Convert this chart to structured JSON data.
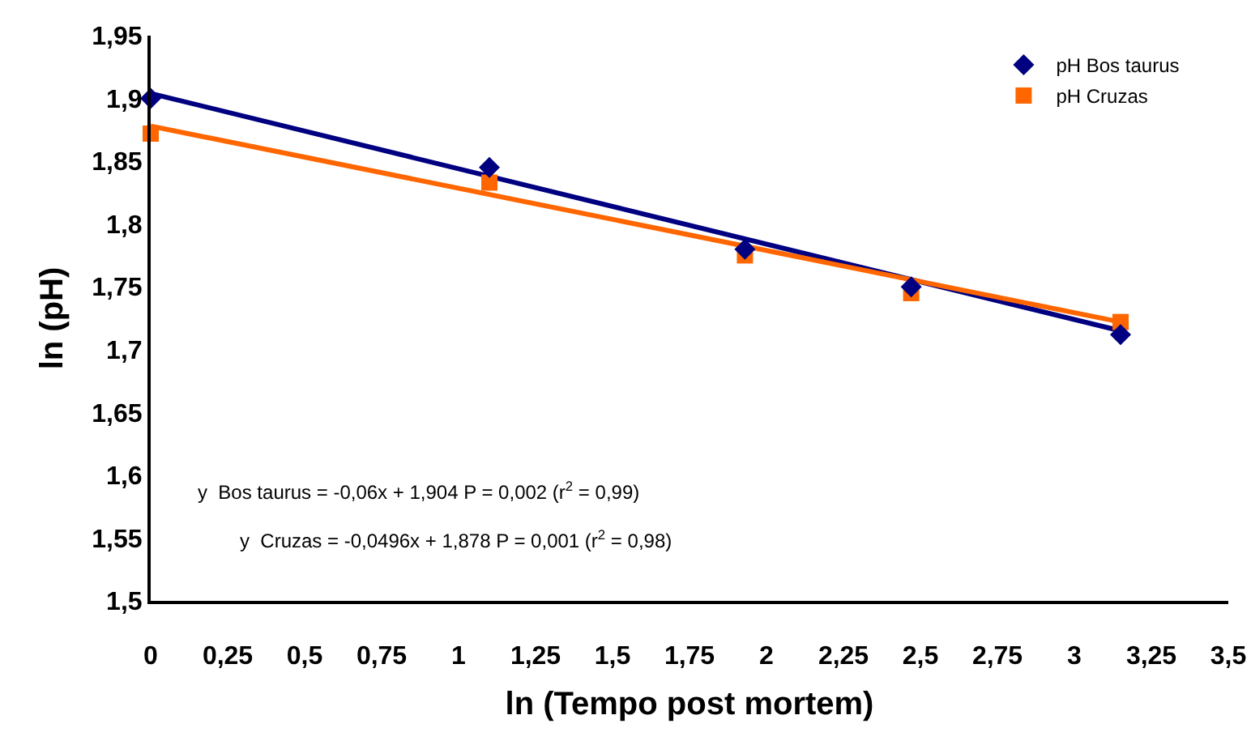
{
  "chart_data": {
    "type": "scatter",
    "xlabel": "ln (Tempo post mortem)",
    "ylabel": "ln (pH)",
    "series": [
      {
        "name": "pH Bos taurus",
        "marker": "diamond",
        "color": "#000080",
        "x": [
          0,
          1.1,
          1.93,
          2.47,
          3.15
        ],
        "values": [
          1.9,
          1.845,
          1.78,
          1.75,
          1.712
        ]
      },
      {
        "name": "pH Cruzas",
        "marker": "square",
        "color": "#ff6600",
        "x": [
          0,
          1.1,
          1.93,
          2.47,
          3.15
        ],
        "values": [
          1.872,
          1.833,
          1.775,
          1.745,
          1.722
        ]
      },
      {
        "type": "line",
        "marker": "none",
        "color": "#000080",
        "x": [
          0,
          3.15
        ],
        "values": [
          1.904,
          1.715
        ]
      },
      {
        "type": "line",
        "marker": "none",
        "color": "#ff6600",
        "x": [
          0,
          3.15
        ],
        "values": [
          1.878,
          1.722
        ]
      }
    ],
    "xlim": [
      0,
      3.5
    ],
    "xticks": [
      0,
      {
        "value": 0.25,
        "label": "0,25"
      },
      {
        "value": 0.5,
        "label": "0,5"
      },
      {
        "value": 0.75,
        "label": "0,75"
      },
      1,
      {
        "value": 1.25,
        "label": "1,25"
      },
      {
        "value": 1.5,
        "label": "1,5"
      },
      {
        "value": 1.75,
        "label": "1,75"
      },
      2,
      {
        "value": 2.25,
        "label": "2,25"
      },
      {
        "value": 2.5,
        "label": "2,5"
      },
      {
        "value": 2.75,
        "label": "2,75"
      },
      3,
      {
        "value": 3.25,
        "label": "3,25"
      },
      {
        "value": 3.5,
        "label": "3,5"
      }
    ],
    "ylim": [
      1.5,
      1.95
    ],
    "yticks": [
      {
        "value": 1.5,
        "label": "1,5"
      },
      {
        "value": 1.55,
        "label": "1,55"
      },
      {
        "value": 1.6,
        "label": "1,6"
      },
      {
        "value": 1.65,
        "label": "1,65"
      },
      {
        "value": 1.7,
        "label": "1,7"
      },
      {
        "value": 1.75,
        "label": "1,75"
      },
      {
        "value": 1.8,
        "label": "1,8"
      },
      {
        "value": 1.85,
        "label": "1,85"
      },
      {
        "value": 1.9,
        "label": "1,9"
      },
      {
        "value": 1.95,
        "label": "1,95"
      }
    ],
    "grid": false,
    "legend": "top right",
    "annotations": [
      "y  Bos taurus = -0,06x + 1,904 P = 0,002 (r$^{2}$ = 0,99)",
      "y  Cruzas = -0,0496x + 1,878 P = 0,001 (r$^{2}$ = 0,98)"
    ]
  }
}
